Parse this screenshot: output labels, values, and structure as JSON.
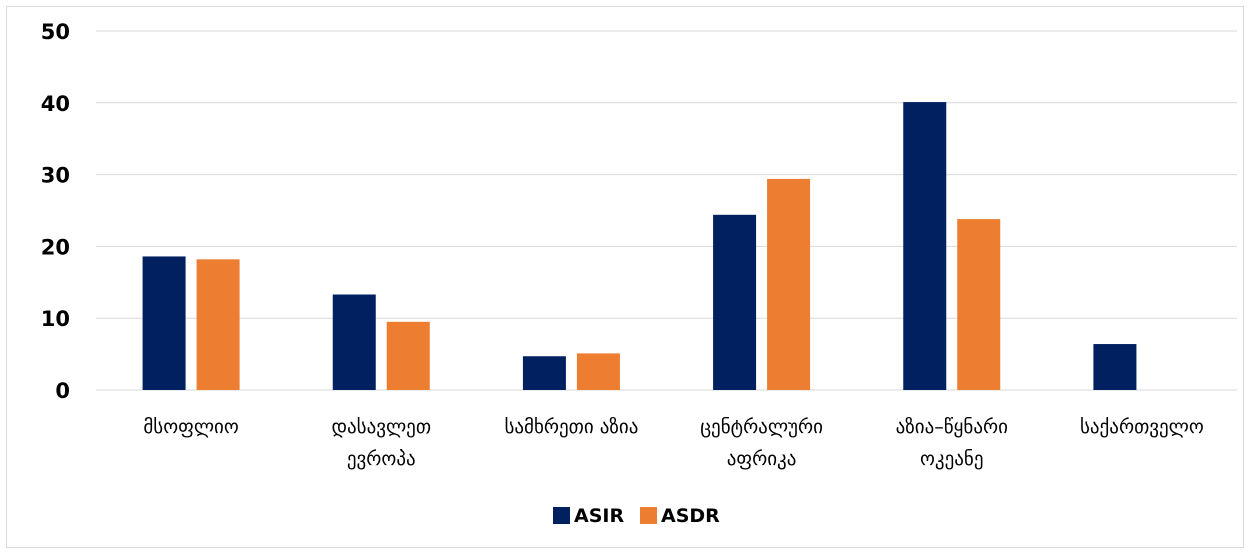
{
  "chart_data": {
    "type": "bar",
    "title": "",
    "xlabel": "",
    "ylabel": "",
    "ylim": [
      0,
      50
    ],
    "yticks": [
      0,
      10,
      20,
      30,
      40,
      50
    ],
    "grid": true,
    "legend_position": "bottom",
    "categories": [
      [
        "მსოფლიო"
      ],
      [
        "დასავლეთ",
        "ევროპა"
      ],
      [
        "სამხრეთი აზია"
      ],
      [
        "ცენტრალური",
        "აფრიკა"
      ],
      [
        "აზია–წყნარი",
        "ოკეანე"
      ],
      [
        "საქართველო"
      ]
    ],
    "series": [
      {
        "name": "ASIR",
        "color": "#002060",
        "values": [
          18.6,
          13.3,
          4.7,
          24.4,
          40.1,
          6.4
        ]
      },
      {
        "name": "ASDR",
        "color": "#ed7d31",
        "values": [
          18.2,
          9.5,
          5.1,
          29.4,
          23.8,
          null
        ]
      }
    ]
  }
}
